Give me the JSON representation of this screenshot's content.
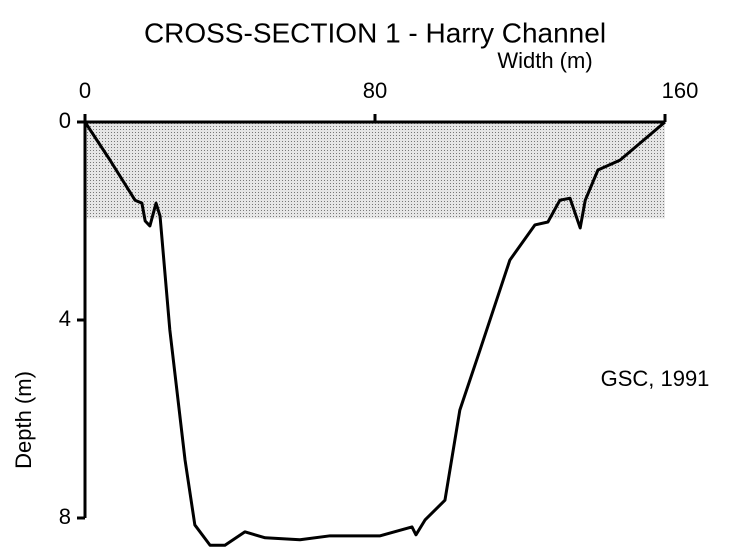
{
  "chart_data": {
    "type": "line",
    "title": "CROSS-SECTION 1 - Harry Channel",
    "x_label": "Width (m)",
    "y_label": "Depth (m)",
    "annotation": "GSC, 1991",
    "x": [
      0,
      6.9,
      13.8,
      15.7,
      16.6,
      17.9,
      19.6,
      20.7,
      23.4,
      27.6,
      30.3,
      34.5,
      38.6,
      44.1,
      49.7,
      59.3,
      67.6,
      81.4,
      90.2,
      91.3,
      93.8,
      99.3,
      103.4,
      109,
      117.2,
      124.1,
      127.7,
      131,
      133.8,
      136.6,
      138,
      141.5,
      147.6,
      160
    ],
    "series": [
      {
        "color": "#000000",
        "values": [
          0,
          0.77,
          1.58,
          1.64,
          2.0,
          2.1,
          1.64,
          1.9,
          4.2,
          6.83,
          8.14,
          8.55,
          8.55,
          8.28,
          8.4,
          8.44,
          8.36,
          8.36,
          8.18,
          8.34,
          8.04,
          7.64,
          5.82,
          4.6,
          2.79,
          2.08,
          2.02,
          1.58,
          1.54,
          2.14,
          1.58,
          0.97,
          0.77,
          0
        ]
      }
    ],
    "shaded_band": {
      "ylim": [
        0,
        1.95
      ],
      "xlim": [
        0,
        160
      ],
      "color": "#d4d4d4"
    },
    "xlim": [
      0,
      160
    ],
    "xticks": [
      0,
      80,
      160
    ],
    "ylim": [
      0,
      8
    ],
    "yticks": [
      0,
      4,
      8
    ],
    "y_inverted": true,
    "x_axis_position": "top"
  }
}
